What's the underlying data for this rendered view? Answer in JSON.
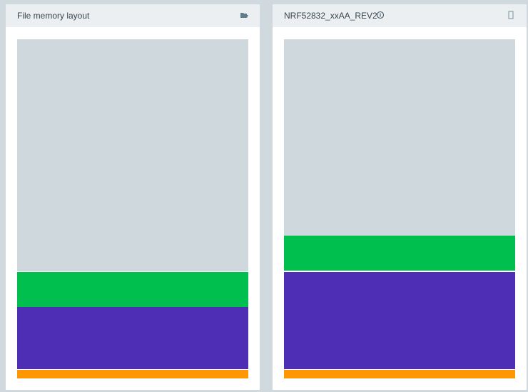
{
  "panels": [
    {
      "title": "File memory layout"
    },
    {
      "title": "NRF52832_xxAA_REV2"
    }
  ]
}
